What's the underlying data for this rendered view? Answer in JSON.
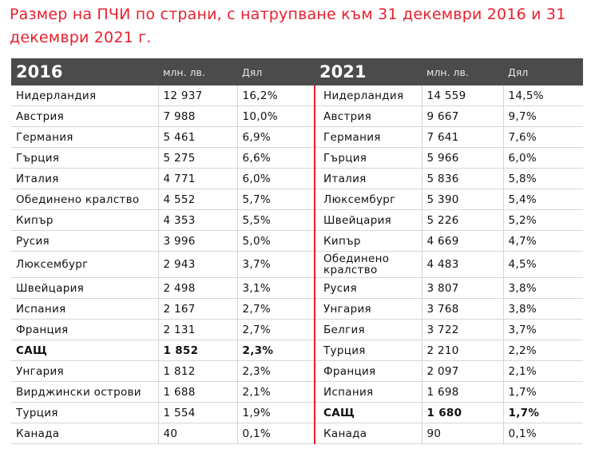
{
  "title": "Размер на ПЧИ по страни, с натрупване към 31 декември 2016 и 31 декември 2021 г.",
  "table": {
    "header": [
      "2016",
      "млн. лв.",
      "Дял",
      "2021",
      "млн. лв.",
      "Дял"
    ],
    "rows": [
      [
        "Нидерландия",
        "12 937",
        "16,2%",
        "Нидерландия",
        "14 559",
        "14,5%"
      ],
      [
        "Австрия",
        "7 988",
        "10,0%",
        "Австрия",
        "9 667",
        "9,7%"
      ],
      [
        "Германия",
        "5 461",
        "6,9%",
        "Германия",
        "7 641",
        "7,6%"
      ],
      [
        "Гърция",
        "5 275",
        "6,6%",
        "Гърция",
        "5 966",
        "6,0%"
      ],
      [
        "Италия",
        "4 771",
        "6,0%",
        "Италия",
        "5 836",
        "5,8%"
      ],
      [
        "Обединено кралство",
        "4 552",
        "5,7%",
        "Люксембург",
        "5 390",
        "5,4%"
      ],
      [
        "Кипър",
        "4 353",
        "5,5%",
        "Швейцария",
        "5 226",
        "5,2%"
      ],
      [
        "Русия",
        "3 996",
        "5,0%",
        "Кипър",
        "4 669",
        "4,7%"
      ],
      [
        "Люксембург",
        "2 943",
        "3,7%",
        "Обединено кралство",
        "4 483",
        "4,5%"
      ],
      [
        "Швейцария",
        "2 498",
        "3,1%",
        "Русия",
        "3 807",
        "3,8%"
      ],
      [
        "Испания",
        "2 167",
        "2,7%",
        "Унгария",
        "3 768",
        "3,8%"
      ],
      [
        "Франция",
        "2 131",
        "2,7%",
        "Белгия",
        "3 722",
        "3,7%"
      ],
      [
        "САЩ",
        "1 852",
        "2,3%",
        "Турция",
        "2 210",
        "2,2%"
      ],
      [
        "Унгария",
        "1 812",
        "2,3%",
        "Франция",
        "2 097",
        "2,1%"
      ],
      [
        "Вирджински острови",
        "1 688",
        "2,1%",
        "Испания",
        "1 698",
        "1,7%"
      ],
      [
        "Турция",
        "1 554",
        "1,9%",
        "САЩ",
        "1 680",
        "1,7%"
      ],
      [
        "Канада",
        "40",
        "0,1%",
        "Канада",
        "90",
        "0,1%"
      ]
    ]
  }
}
